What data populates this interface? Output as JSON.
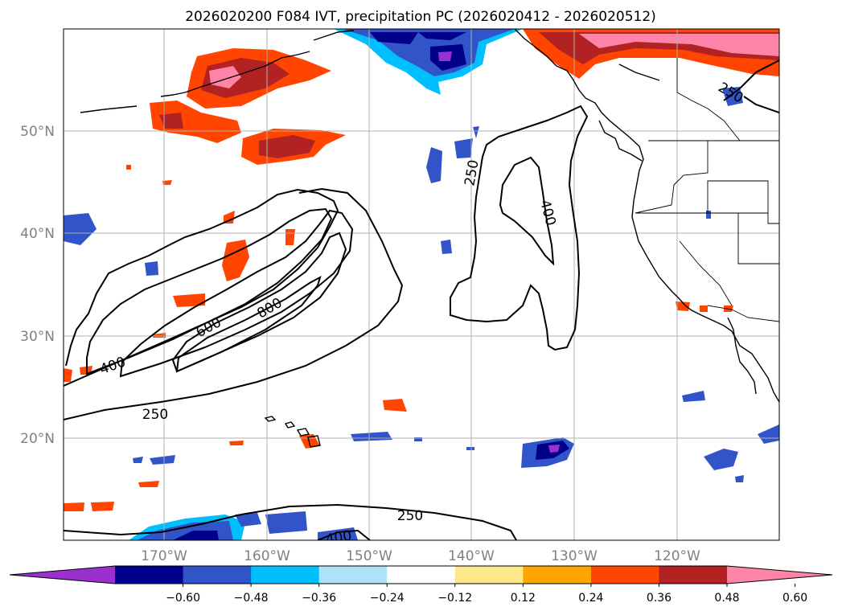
{
  "title": "2026020200 F084 IVT, precipitation PC (2026020412 - 2026020512)",
  "latitude_labels": [
    "50°N",
    "40°N",
    "30°N",
    "20°N"
  ],
  "longitude_labels": [
    "170°W",
    "160°W",
    "150°W",
    "140°W",
    "130°W",
    "120°W"
  ],
  "contour_labels": [
    "250",
    "250",
    "400",
    "600",
    "800",
    "250",
    "400",
    "250",
    "400"
  ],
  "colorbar": {
    "ticks": [
      "−0.60",
      "−0.48",
      "−0.36",
      "−0.24",
      "−0.12",
      "0.12",
      "0.24",
      "0.36",
      "0.48",
      "0.60"
    ],
    "colors": [
      "#9b30d0",
      "#00008b",
      "#3155c8",
      "#00bfff",
      "#aee3f7",
      "#ffffff",
      "#fde98c",
      "#ffa500",
      "#ff4500",
      "#b22222",
      "#ff85a8"
    ]
  }
}
